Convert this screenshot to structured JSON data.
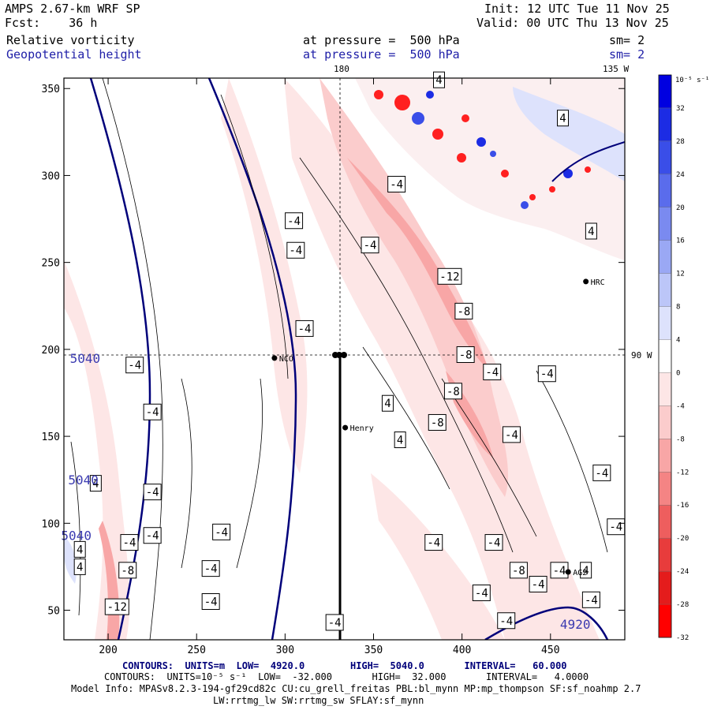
{
  "header": {
    "model": "AMPS 2.67-km WRF SP",
    "fcst": "Fcst:    36 h",
    "init": "Init: 12 UTC Tue 11 Nov 25",
    "valid": "Valid: 00 UTC Thu 13 Nov 25",
    "field1": "Relative vorticity",
    "field2": "Geopotential height",
    "pressure1": "at pressure =  500 hPa",
    "pressure2": "at pressure =  500 hPa",
    "sm1": "sm= 2",
    "sm2": "sm= 2"
  },
  "map_labels": {
    "lon_top_180": "180",
    "lon_top_135w": "135 W",
    "lon_right_90w": "90 W"
  },
  "stations": [
    {
      "name": "NCO",
      "x": 294,
      "y": 195
    },
    {
      "name": "Henry",
      "x": 334,
      "y": 155
    },
    {
      "name": "HRC",
      "x": 470,
      "y": 239
    },
    {
      "name": "AG2",
      "x": 460,
      "y": 72
    }
  ],
  "colorbar": {
    "unit": "10⁻⁵ s⁻¹",
    "labels": [
      "32",
      "28",
      "24",
      "20",
      "16",
      "12",
      "8",
      "4",
      "0",
      "-4",
      "-8",
      "-12",
      "-16",
      "-20",
      "-24",
      "-28",
      "-32"
    ],
    "colors": [
      "#0000e0",
      "#1c2ce4",
      "#3a4ee8",
      "#5a6cec",
      "#7a8af0",
      "#9aa8f4",
      "#bcc6f8",
      "#dde2fc",
      "#ffffff",
      "#fde6e6",
      "#fbcccc",
      "#f8a6a6",
      "#f48484",
      "#ee5e5e",
      "#e83c3c",
      "#e41c1c",
      "#ff0000"
    ]
  },
  "chart_data": {
    "type": "heatmap",
    "x_ticks": [
      200,
      250,
      300,
      350,
      400,
      450
    ],
    "y_ticks": [
      50,
      100,
      150,
      200,
      250,
      300,
      350
    ],
    "xlim": [
      175,
      492
    ],
    "ylim": [
      33,
      356
    ],
    "height_contour_labels": [
      {
        "text": "5040",
        "x": 187,
        "y": 195
      },
      {
        "text": "5040",
        "x": 186,
        "y": 125
      },
      {
        "text": "5040",
        "x": 182,
        "y": 93
      },
      {
        "text": "4920",
        "x": 464,
        "y": 42
      }
    ],
    "vorticity_labels": [
      {
        "text": "-4",
        "x": 305,
        "y": 274
      },
      {
        "text": "-4",
        "x": 306,
        "y": 257
      },
      {
        "text": "-4",
        "x": 311,
        "y": 212
      },
      {
        "text": "-4",
        "x": 348,
        "y": 260
      },
      {
        "text": "-4",
        "x": 363,
        "y": 295
      },
      {
        "text": "4",
        "x": 387,
        "y": 355
      },
      {
        "text": "-12",
        "x": 393,
        "y": 242
      },
      {
        "text": "-8",
        "x": 401,
        "y": 222
      },
      {
        "text": "-8",
        "x": 402,
        "y": 197
      },
      {
        "text": "-8",
        "x": 395,
        "y": 176
      },
      {
        "text": "-8",
        "x": 386,
        "y": 158
      },
      {
        "text": "-4",
        "x": 417,
        "y": 187
      },
      {
        "text": "-4",
        "x": 448,
        "y": 186
      },
      {
        "text": "4",
        "x": 457,
        "y": 333
      },
      {
        "text": "4",
        "x": 473,
        "y": 268
      },
      {
        "text": "4",
        "x": 358,
        "y": 169
      },
      {
        "text": "4",
        "x": 365,
        "y": 148
      },
      {
        "text": "-4",
        "x": 215,
        "y": 191
      },
      {
        "text": "-4",
        "x": 225,
        "y": 164
      },
      {
        "text": "4",
        "x": 193,
        "y": 123
      },
      {
        "text": "-4",
        "x": 225,
        "y": 118
      },
      {
        "text": "-4",
        "x": 225,
        "y": 93
      },
      {
        "text": "-4",
        "x": 212,
        "y": 89
      },
      {
        "text": "4",
        "x": 184,
        "y": 85
      },
      {
        "text": "4",
        "x": 184,
        "y": 75
      },
      {
        "text": "-8",
        "x": 211,
        "y": 73
      },
      {
        "text": "-12",
        "x": 205,
        "y": 52
      },
      {
        "text": "-4",
        "x": 264,
        "y": 95
      },
      {
        "text": "-4",
        "x": 258,
        "y": 74
      },
      {
        "text": "-4",
        "x": 258,
        "y": 55
      },
      {
        "text": "-4",
        "x": 428,
        "y": 151
      },
      {
        "text": "-4",
        "x": 479,
        "y": 129
      },
      {
        "text": "-4",
        "x": 487,
        "y": 98
      },
      {
        "text": "-4",
        "x": 384,
        "y": 89
      },
      {
        "text": "-4",
        "x": 418,
        "y": 89
      },
      {
        "text": "-8",
        "x": 432,
        "y": 73
      },
      {
        "text": "-4",
        "x": 455,
        "y": 73
      },
      {
        "text": "4",
        "x": 470,
        "y": 73
      },
      {
        "text": "-4",
        "x": 443,
        "y": 65
      },
      {
        "text": "-4",
        "x": 411,
        "y": 60
      },
      {
        "text": "-4",
        "x": 473,
        "y": 56
      },
      {
        "text": "-4",
        "x": 425,
        "y": 44
      },
      {
        "text": "-4",
        "x": 328,
        "y": 43
      }
    ]
  },
  "footer": {
    "contours_height": "CONTOURS:  UNITS=m  LOW=  4920.0        HIGH=  5040.0       INTERVAL=   60.000",
    "contours_vort": "CONTOURS:  UNITS=10⁻⁵ s⁻¹  LOW=  -32.000       HIGH=  32.000       INTERVAL=   4.0000",
    "model_info": "Model Info: MPASv8.2.3-194-gf29cd82c CU:cu_grell_freitas PBL:bl_mynn MP:mp_thompson SF:sf_noahmp 2.7",
    "model_info2": "LW:rrtmg_lw SW:rrtmg_sw SFLAY:sf_mynn"
  }
}
